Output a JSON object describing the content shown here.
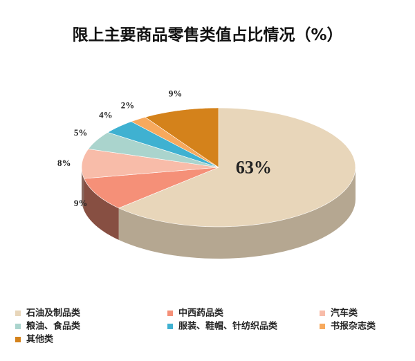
{
  "chart_data": {
    "type": "pie",
    "title": "限上主要商品零售类值占比情况（%）",
    "categories": [
      "石油及制品类",
      "中西药品类",
      "汽车类",
      "粮油、食品类",
      "服装、鞋帽、针纺织品类",
      "书报杂志类",
      "其他类"
    ],
    "values": [
      63,
      9,
      8,
      5,
      4,
      2,
      9
    ],
    "value_labels": [
      "63%",
      "9%",
      "8%",
      "5%",
      "4%",
      "2%",
      "9%"
    ],
    "colors": [
      "#e8d6ba",
      "#f59078",
      "#f8bca9",
      "#aad4cd",
      "#3fb1d1",
      "#f7a95d",
      "#d4821b"
    ]
  }
}
